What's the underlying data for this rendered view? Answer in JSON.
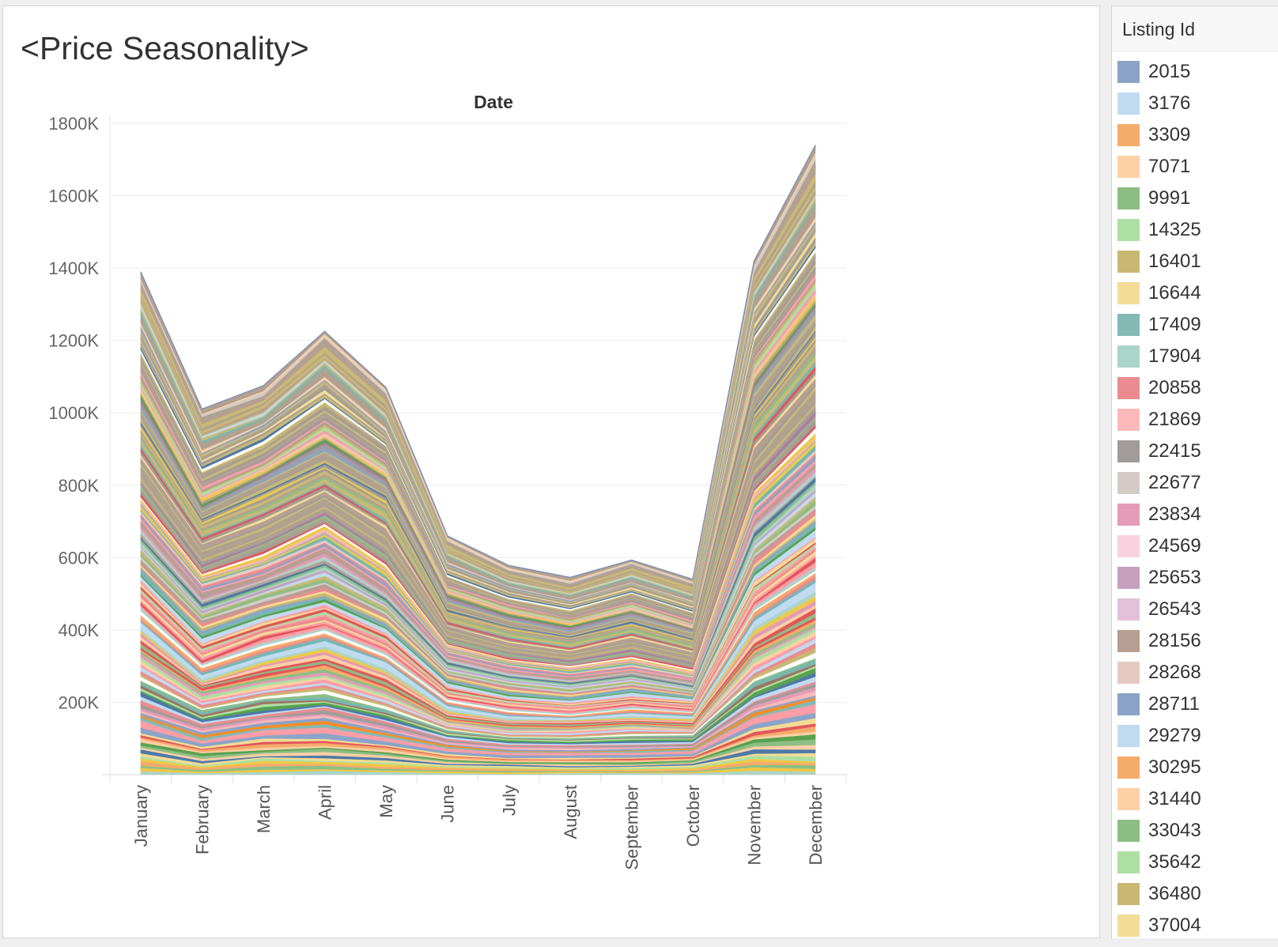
{
  "title": "<Price Seasonality>",
  "chart_data": {
    "type": "area",
    "stacked": true,
    "title": "<Price Seasonality>",
    "header": "Date",
    "xlabel": "",
    "ylabel": "",
    "categories": [
      "January",
      "February",
      "March",
      "April",
      "May",
      "June",
      "July",
      "August",
      "September",
      "October",
      "November",
      "December"
    ],
    "totals": [
      1390000,
      1010000,
      1075000,
      1225000,
      1070000,
      660000,
      578000,
      545000,
      593000,
      540000,
      1420000,
      1740000
    ],
    "y_ticks": [
      "1800K",
      "1600K",
      "1400K",
      "1200K",
      "1000K",
      "800K",
      "600K",
      "400K",
      "200K"
    ],
    "y_tick_values": [
      1800000,
      1600000,
      1400000,
      1200000,
      1000000,
      800000,
      600000,
      400000,
      200000
    ],
    "ylim": [
      0,
      1800000
    ],
    "grid": true,
    "legend_position": "right"
  },
  "legend": {
    "title": "Listing Id",
    "items": [
      {
        "label": "2015",
        "color": "#8ba3c7"
      },
      {
        "label": "3176",
        "color": "#c0daf0"
      },
      {
        "label": "3309",
        "color": "#f5ab6a"
      },
      {
        "label": "7071",
        "color": "#fdd0a6"
      },
      {
        "label": "9991",
        "color": "#8dbe84"
      },
      {
        "label": "14325",
        "color": "#aedfa3"
      },
      {
        "label": "16401",
        "color": "#c9b872"
      },
      {
        "label": "16644",
        "color": "#f3dc95"
      },
      {
        "label": "17409",
        "color": "#83bab4"
      },
      {
        "label": "17904",
        "color": "#abd4ca"
      },
      {
        "label": "20858",
        "color": "#ea8c8f"
      },
      {
        "label": "21869",
        "color": "#fbb9b9"
      },
      {
        "label": "22415",
        "color": "#a19c99"
      },
      {
        "label": "22677",
        "color": "#d4cbc7"
      },
      {
        "label": "23834",
        "color": "#e39bb6"
      },
      {
        "label": "24569",
        "color": "#f9d2df"
      },
      {
        "label": "25653",
        "color": "#c7a0bd"
      },
      {
        "label": "26543",
        "color": "#e3c1d8"
      },
      {
        "label": "28156",
        "color": "#b79e92"
      },
      {
        "label": "28268",
        "color": "#e5cac1"
      },
      {
        "label": "28711",
        "color": "#8ba3c7"
      },
      {
        "label": "29279",
        "color": "#c0daf0"
      },
      {
        "label": "30295",
        "color": "#f5ab6a"
      },
      {
        "label": "31440",
        "color": "#fdd0a6"
      },
      {
        "label": "33043",
        "color": "#8dbe84"
      },
      {
        "label": "35642",
        "color": "#aedfa3"
      },
      {
        "label": "36480",
        "color": "#c9b872"
      },
      {
        "label": "37004",
        "color": "#f3dc95"
      }
    ]
  }
}
